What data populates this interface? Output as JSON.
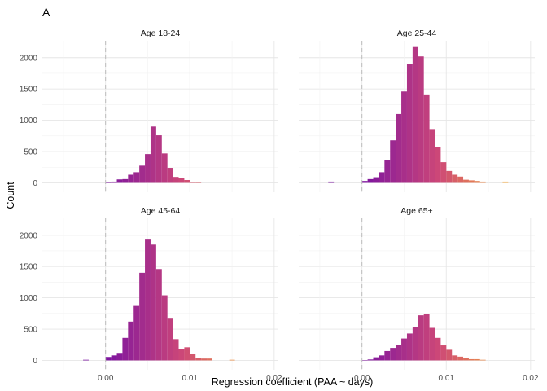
{
  "chart_data": {
    "type": "histogram-facet",
    "tag": "A",
    "xlabel": "Regression coefficient (PAA ~ days)",
    "ylabel": "Count",
    "xlim": [
      -0.0075,
      0.0205
    ],
    "ylim": [
      -150,
      2270
    ],
    "x_ticks": [
      0.0,
      0.01,
      0.02
    ],
    "x_tick_labels": [
      "0.00",
      "0.01",
      "0.02"
    ],
    "y_ticks": [
      0,
      500,
      1000,
      1500,
      2000
    ],
    "y_tick_labels": [
      "0",
      "500",
      "1000",
      "1500",
      "2000"
    ],
    "reference_line_x": 0,
    "grid": true,
    "bin_width": 0.000667,
    "bin_start": -0.004,
    "colors": {
      "low": "#7b12a1",
      "mid": "#cc4778",
      "high": "#fdb42f"
    },
    "facets": [
      {
        "title": "Age 18-24",
        "counts": [
          0,
          0,
          0,
          0,
          0,
          0,
          5,
          20,
          55,
          60,
          130,
          170,
          275,
          460,
          900,
          760,
          470,
          240,
          95,
          80,
          45,
          15,
          5,
          0,
          0,
          0,
          0,
          0,
          0,
          0,
          0,
          0,
          0,
          0,
          0
        ]
      },
      {
        "title": "Age 25-44",
        "counts": [
          20,
          0,
          0,
          0,
          0,
          0,
          30,
          60,
          90,
          170,
          360,
          680,
          1100,
          1460,
          1900,
          2170,
          2020,
          1400,
          860,
          570,
          330,
          190,
          130,
          100,
          50,
          40,
          30,
          20,
          0,
          0,
          0,
          20,
          0,
          0,
          0
        ]
      },
      {
        "title": "Age 45-64",
        "counts": [
          0,
          0,
          10,
          0,
          0,
          0,
          55,
          80,
          120,
          360,
          620,
          870,
          1400,
          1930,
          1850,
          1460,
          1040,
          680,
          340,
          180,
          210,
          110,
          40,
          30,
          30,
          0,
          0,
          0,
          10,
          0,
          0,
          0,
          0,
          0,
          0
        ]
      },
      {
        "title": "Age 65+",
        "counts": [
          0,
          0,
          0,
          0,
          0,
          0,
          5,
          15,
          50,
          80,
          150,
          200,
          250,
          350,
          430,
          530,
          720,
          740,
          520,
          360,
          240,
          170,
          80,
          60,
          40,
          20,
          20,
          10,
          0,
          0,
          0,
          0,
          0,
          0,
          0
        ]
      }
    ]
  }
}
